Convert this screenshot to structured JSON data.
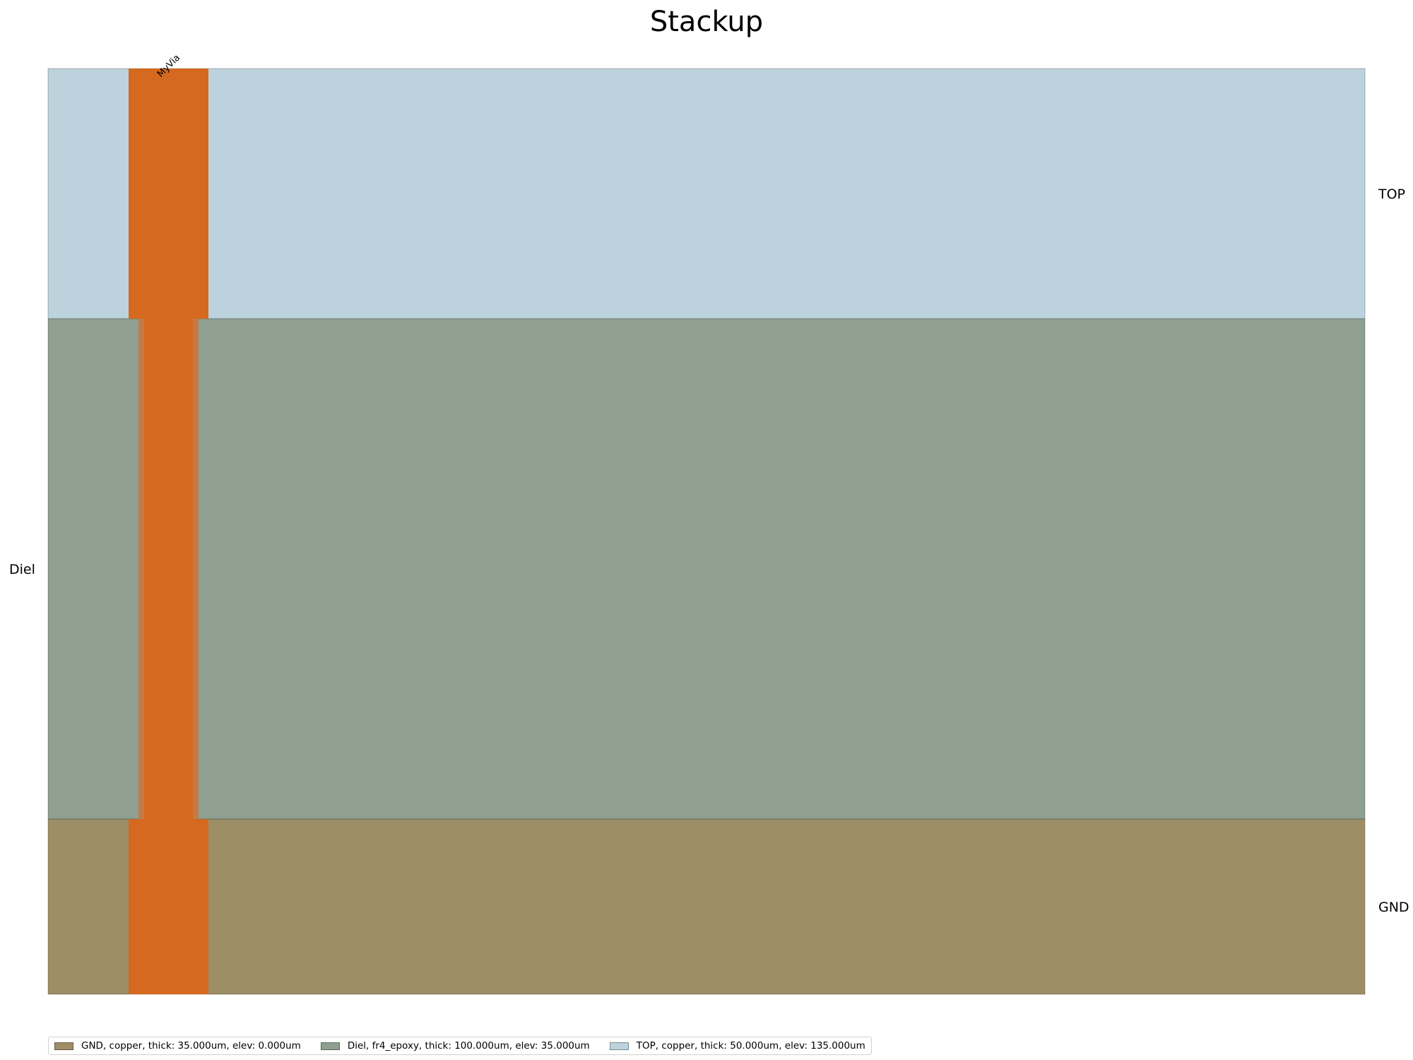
{
  "title": "Stackup",
  "layers": [
    {
      "name": "TOP",
      "legend_label": "TOP, copper, thick: 50.000um, elev: 135.000um",
      "material": "copper",
      "thickness_um": 50,
      "elevation_um": 135,
      "color": "#bcd3de",
      "label_side": "right"
    },
    {
      "name": "Diel",
      "legend_label": "Diel, fr4_epoxy, thick: 100.000um, elev: 35.000um",
      "material": "fr4_epoxy",
      "thickness_um": 100,
      "elevation_um": 35,
      "color": "#8fa090",
      "label_side": "left"
    },
    {
      "name": "GND",
      "legend_label": "GND, copper, thick: 35.000um, elev: 0.000um",
      "material": "copper",
      "thickness_um": 35,
      "elevation_um": 0,
      "color": "#9d8e66",
      "label_side": "right"
    }
  ],
  "legend_order": [
    "GND",
    "Diel",
    "TOP"
  ],
  "via": {
    "name": "MyVia",
    "color": "#d4691f",
    "plating_color": "#c47a48",
    "spans": [
      "GND",
      "TOP"
    ]
  }
}
